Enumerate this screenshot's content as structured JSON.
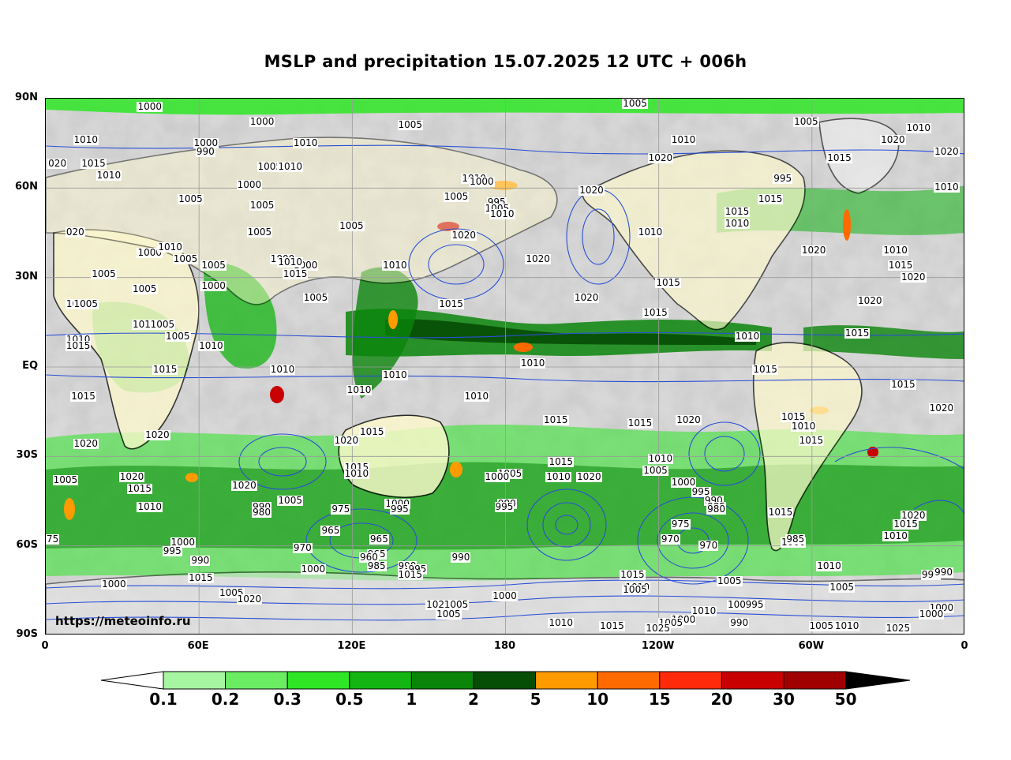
{
  "title": "MSLP and precipitation 15.07.2025 12 UTC + 006h",
  "watermark": "https://meteoinfo.ru",
  "lat_labels": [
    "90N",
    "60N",
    "30N",
    "EQ",
    "30S",
    "60S",
    "90S"
  ],
  "lon_labels": [
    "0",
    "60E",
    "120E",
    "180",
    "120W",
    "60W",
    "0"
  ],
  "colors": {
    "ocean_base": "#d9d9d9",
    "land_dry": "#fffacd",
    "coast": "#000000",
    "isobar": "#2a4fd6",
    "grid": "#9a9a9a"
  },
  "legend": {
    "ticks": [
      "0.1",
      "0.2",
      "0.3",
      "0.5",
      "1",
      "2",
      "5",
      "10",
      "15",
      "20",
      "30",
      "50"
    ],
    "colors": [
      "#ffffff",
      "#a6f5a0",
      "#6aed62",
      "#2ee626",
      "#12b512",
      "#0a850a",
      "#064d06",
      "#ff9a00",
      "#ff6a00",
      "#ff2a0a",
      "#c80000",
      "#a00000",
      "#000000"
    ]
  },
  "isobar_labels": [
    {
      "text": "1000",
      "lon": 40,
      "lat": 87
    },
    {
      "text": "1000",
      "lon": 84,
      "lat": 82
    },
    {
      "text": "1005",
      "lon": 142,
      "lat": 81
    },
    {
      "text": "1005",
      "lon": 230,
      "lat": 89
    },
    {
      "text": "1010",
      "lon": 15,
      "lat": 76
    },
    {
      "text": "1010",
      "lon": 101,
      "lat": 75
    },
    {
      "text": "1000",
      "lon": 62,
      "lat": 75
    },
    {
      "text": "990",
      "lon": 63,
      "lat": 72
    },
    {
      "text": "1005",
      "lon": 87,
      "lat": 67
    },
    {
      "text": "1010",
      "lon": 95,
      "lat": 67
    },
    {
      "text": "1010",
      "lon": 167,
      "lat": 63
    },
    {
      "text": "1020",
      "lon": 240,
      "lat": 70
    },
    {
      "text": "1010",
      "lon": 249,
      "lat": 76
    },
    {
      "text": "1005",
      "lon": 297,
      "lat": 82
    },
    {
      "text": "1010",
      "lon": 341,
      "lat": 80
    },
    {
      "text": "1020",
      "lon": 331,
      "lat": 76
    },
    {
      "text": "1020",
      "lon": 352,
      "lat": 72
    },
    {
      "text": "1015",
      "lon": 310,
      "lat": 70
    },
    {
      "text": "995",
      "lon": 289,
      "lat": 63
    },
    {
      "text": "1015",
      "lon": 283,
      "lat": 56
    },
    {
      "text": "1015",
      "lon": 270,
      "lat": 52
    },
    {
      "text": "1010",
      "lon": 270,
      "lat": 48
    },
    {
      "text": "1010",
      "lon": 352,
      "lat": 60
    },
    {
      "text": "020",
      "lon": 5,
      "lat": 68
    },
    {
      "text": "1015",
      "lon": 18,
      "lat": 68
    },
    {
      "text": "1010",
      "lon": 24,
      "lat": 64
    },
    {
      "text": "1000",
      "lon": 79,
      "lat": 61
    },
    {
      "text": "1005",
      "lon": 56,
      "lat": 56
    },
    {
      "text": "1005",
      "lon": 84,
      "lat": 54
    },
    {
      "text": "1005",
      "lon": 83,
      "lat": 45
    },
    {
      "text": "1005",
      "lon": 119,
      "lat": 47
    },
    {
      "text": "1000",
      "lon": 170,
      "lat": 62
    },
    {
      "text": "1005",
      "lon": 160,
      "lat": 57
    },
    {
      "text": "995",
      "lon": 177,
      "lat": 55
    },
    {
      "text": "1005",
      "lon": 176,
      "lat": 53
    },
    {
      "text": "1010",
      "lon": 178,
      "lat": 51
    },
    {
      "text": "1020",
      "lon": 213,
      "lat": 59
    },
    {
      "text": "1020",
      "lon": 163,
      "lat": 44
    },
    {
      "text": "1010",
      "lon": 236,
      "lat": 45
    },
    {
      "text": "1020",
      "lon": 192,
      "lat": 36
    },
    {
      "text": "1020",
      "lon": 300,
      "lat": 39
    },
    {
      "text": "1010",
      "lon": 332,
      "lat": 39
    },
    {
      "text": "1015",
      "lon": 334,
      "lat": 34
    },
    {
      "text": "1020",
      "lon": 339,
      "lat": 30
    },
    {
      "text": "1020",
      "lon": 322,
      "lat": 22
    },
    {
      "text": "1015",
      "lon": 243,
      "lat": 28
    },
    {
      "text": "1020",
      "lon": 211,
      "lat": 23
    },
    {
      "text": "1015",
      "lon": 158,
      "lat": 21
    },
    {
      "text": "1015",
      "lon": 238,
      "lat": 18
    },
    {
      "text": "1015",
      "lon": 317,
      "lat": 11
    },
    {
      "text": "1010",
      "lon": 274,
      "lat": 10
    },
    {
      "text": "020",
      "lon": 12,
      "lat": 45
    },
    {
      "text": "1000",
      "lon": 40,
      "lat": 38
    },
    {
      "text": "1010",
      "lon": 48,
      "lat": 40
    },
    {
      "text": "1005",
      "lon": 54,
      "lat": 36
    },
    {
      "text": "1005",
      "lon": 65,
      "lat": 34
    },
    {
      "text": "1000",
      "lon": 92,
      "lat": 36
    },
    {
      "text": "1000",
      "lon": 101,
      "lat": 34
    },
    {
      "text": "1015",
      "lon": 97,
      "lat": 31
    },
    {
      "text": "1010",
      "lon": 95,
      "lat": 35
    },
    {
      "text": "1010",
      "lon": 136,
      "lat": 34
    },
    {
      "text": "1000",
      "lon": 65,
      "lat": 27
    },
    {
      "text": "1005",
      "lon": 22,
      "lat": 31
    },
    {
      "text": "1005",
      "lon": 38,
      "lat": 26
    },
    {
      "text": "1010",
      "lon": 12,
      "lat": 21
    },
    {
      "text": "1005",
      "lon": 15,
      "lat": 21
    },
    {
      "text": "1005",
      "lon": 105,
      "lat": 23
    },
    {
      "text": "1015",
      "lon": 38,
      "lat": 14
    },
    {
      "text": "1005",
      "lon": 45,
      "lat": 14
    },
    {
      "text": "1005",
      "lon": 51,
      "lat": 10
    },
    {
      "text": "1010",
      "lon": 12,
      "lat": 9
    },
    {
      "text": "1015",
      "lon": 12,
      "lat": 7
    },
    {
      "text": "1010",
      "lon": 64,
      "lat": 7
    },
    {
      "text": "1015",
      "lon": 46,
      "lat": -1
    },
    {
      "text": "1010",
      "lon": 92,
      "lat": -1
    },
    {
      "text": "1010",
      "lon": 136,
      "lat": -3
    },
    {
      "text": "1010",
      "lon": 122,
      "lat": -8
    },
    {
      "text": "1010",
      "lon": 168,
      "lat": -10
    },
    {
      "text": "1010",
      "lon": 190,
      "lat": 1
    },
    {
      "text": "1015",
      "lon": 14,
      "lat": -10
    },
    {
      "text": "1020",
      "lon": 43,
      "lat": -23
    },
    {
      "text": "1020",
      "lon": 15,
      "lat": -26
    },
    {
      "text": "1015",
      "lon": 127,
      "lat": -22
    },
    {
      "text": "1020",
      "lon": 117,
      "lat": -25
    },
    {
      "text": "1015",
      "lon": 199,
      "lat": -18
    },
    {
      "text": "1015",
      "lon": 232,
      "lat": -19
    },
    {
      "text": "1020",
      "lon": 251,
      "lat": -18
    },
    {
      "text": "1015",
      "lon": 292,
      "lat": -17
    },
    {
      "text": "1010",
      "lon": 296,
      "lat": -20
    },
    {
      "text": "1015",
      "lon": 299,
      "lat": -25
    },
    {
      "text": "1020",
      "lon": 350,
      "lat": -14
    },
    {
      "text": "1015",
      "lon": 335,
      "lat": -6
    },
    {
      "text": "1015",
      "lon": 281,
      "lat": -1
    },
    {
      "text": "1005",
      "lon": 7,
      "lat": -38
    },
    {
      "text": "1020",
      "lon": 33,
      "lat": -37
    },
    {
      "text": "1015",
      "lon": 36,
      "lat": -41
    },
    {
      "text": "1010",
      "lon": 40,
      "lat": -47
    },
    {
      "text": "1020",
      "lon": 77,
      "lat": -40
    },
    {
      "text": "990",
      "lon": 85,
      "lat": -47
    },
    {
      "text": "980",
      "lon": 85,
      "lat": -49
    },
    {
      "text": "1005",
      "lon": 95,
      "lat": -45
    },
    {
      "text": "975",
      "lon": 116,
      "lat": -48
    },
    {
      "text": "965",
      "lon": 112,
      "lat": -55
    },
    {
      "text": "1015",
      "lon": 121,
      "lat": -34
    },
    {
      "text": "1010",
      "lon": 121,
      "lat": -36
    },
    {
      "text": "1000",
      "lon": 137,
      "lat": -46
    },
    {
      "text": "995",
      "lon": 139,
      "lat": -48
    },
    {
      "text": "1005",
      "lon": 181,
      "lat": -36
    },
    {
      "text": "1000",
      "lon": 176,
      "lat": -37
    },
    {
      "text": "980",
      "lon": 181,
      "lat": -46
    },
    {
      "text": "995",
      "lon": 180,
      "lat": -47
    },
    {
      "text": "1015",
      "lon": 201,
      "lat": -32
    },
    {
      "text": "1010",
      "lon": 200,
      "lat": -37
    },
    {
      "text": "1020",
      "lon": 212,
      "lat": -37
    },
    {
      "text": "1010",
      "lon": 240,
      "lat": -31
    },
    {
      "text": "1005",
      "lon": 238,
      "lat": -35
    },
    {
      "text": "1000",
      "lon": 249,
      "lat": -39
    },
    {
      "text": "995",
      "lon": 257,
      "lat": -42
    },
    {
      "text": "990",
      "lon": 262,
      "lat": -45
    },
    {
      "text": "985",
      "lon": 263,
      "lat": -47
    },
    {
      "text": "980",
      "lon": 263,
      "lat": -48
    },
    {
      "text": "975",
      "lon": 249,
      "lat": -53
    },
    {
      "text": "970",
      "lon": 245,
      "lat": -58
    },
    {
      "text": "970",
      "lon": 260,
      "lat": -60
    },
    {
      "text": "1015",
      "lon": 287,
      "lat": -49
    },
    {
      "text": "1000",
      "lon": 292,
      "lat": -59
    },
    {
      "text": "985",
      "lon": 294,
      "lat": -58
    },
    {
      "text": "1020",
      "lon": 339,
      "lat": -50
    },
    {
      "text": "1015",
      "lon": 336,
      "lat": -53
    },
    {
      "text": "1010",
      "lon": 332,
      "lat": -57
    },
    {
      "text": "1010",
      "lon": 306,
      "lat": -67
    },
    {
      "text": "1005",
      "lon": 311,
      "lat": -74
    },
    {
      "text": "995",
      "lon": 347,
      "lat": -70
    },
    {
      "text": "990",
      "lon": 352,
      "lat": -69
    },
    {
      "text": "75",
      "lon": 3,
      "lat": -58
    },
    {
      "text": "1000",
      "lon": 53,
      "lat": -59
    },
    {
      "text": "995",
      "lon": 50,
      "lat": -62
    },
    {
      "text": "990",
      "lon": 61,
      "lat": -65
    },
    {
      "text": "1015",
      "lon": 60,
      "lat": -71
    },
    {
      "text": "1000",
      "lon": 26,
      "lat": -73
    },
    {
      "text": "1005",
      "lon": 72,
      "lat": -76
    },
    {
      "text": "1020",
      "lon": 79,
      "lat": -78
    },
    {
      "text": "970",
      "lon": 101,
      "lat": -61
    },
    {
      "text": "1000",
      "lon": 104,
      "lat": -68
    },
    {
      "text": "965",
      "lon": 131,
      "lat": -58
    },
    {
      "text": "965",
      "lon": 130,
      "lat": -63
    },
    {
      "text": "960",
      "lon": 127,
      "lat": -64
    },
    {
      "text": "985",
      "lon": 130,
      "lat": -67
    },
    {
      "text": "990",
      "lon": 142,
      "lat": -67
    },
    {
      "text": "995",
      "lon": 146,
      "lat": -68
    },
    {
      "text": "1015",
      "lon": 142,
      "lat": -70
    },
    {
      "text": "990",
      "lon": 163,
      "lat": -64
    },
    {
      "text": "1000",
      "lon": 179,
      "lat": -77
    },
    {
      "text": "1020",
      "lon": 153,
      "lat": -80
    },
    {
      "text": "1005",
      "lon": 160,
      "lat": -80
    },
    {
      "text": "1005",
      "lon": 157,
      "lat": -83
    },
    {
      "text": "1015",
      "lon": 229,
      "lat": -70
    },
    {
      "text": "1010",
      "lon": 231,
      "lat": -74
    },
    {
      "text": "1005",
      "lon": 230,
      "lat": -75
    },
    {
      "text": "1005",
      "lon": 267,
      "lat": -72
    },
    {
      "text": "1000",
      "lon": 271,
      "lat": -80
    },
    {
      "text": "995",
      "lon": 278,
      "lat": -80
    },
    {
      "text": "990",
      "lon": 272,
      "lat": -86
    },
    {
      "text": "1010",
      "lon": 257,
      "lat": -82
    },
    {
      "text": "1000",
      "lon": 249,
      "lat": -85
    },
    {
      "text": "1005",
      "lon": 244,
      "lat": -86
    },
    {
      "text": "1025",
      "lon": 239,
      "lat": -88
    },
    {
      "text": "1015",
      "lon": 221,
      "lat": -87
    },
    {
      "text": "1010",
      "lon": 201,
      "lat": -86
    },
    {
      "text": "1005",
      "lon": 303,
      "lat": -87
    },
    {
      "text": "1010",
      "lon": 313,
      "lat": -87
    },
    {
      "text": "1025",
      "lon": 333,
      "lat": -89
    },
    {
      "text": "1000",
      "lon": 350,
      "lat": -81
    },
    {
      "text": "1000",
      "lon": 346,
      "lat": -83
    }
  ]
}
